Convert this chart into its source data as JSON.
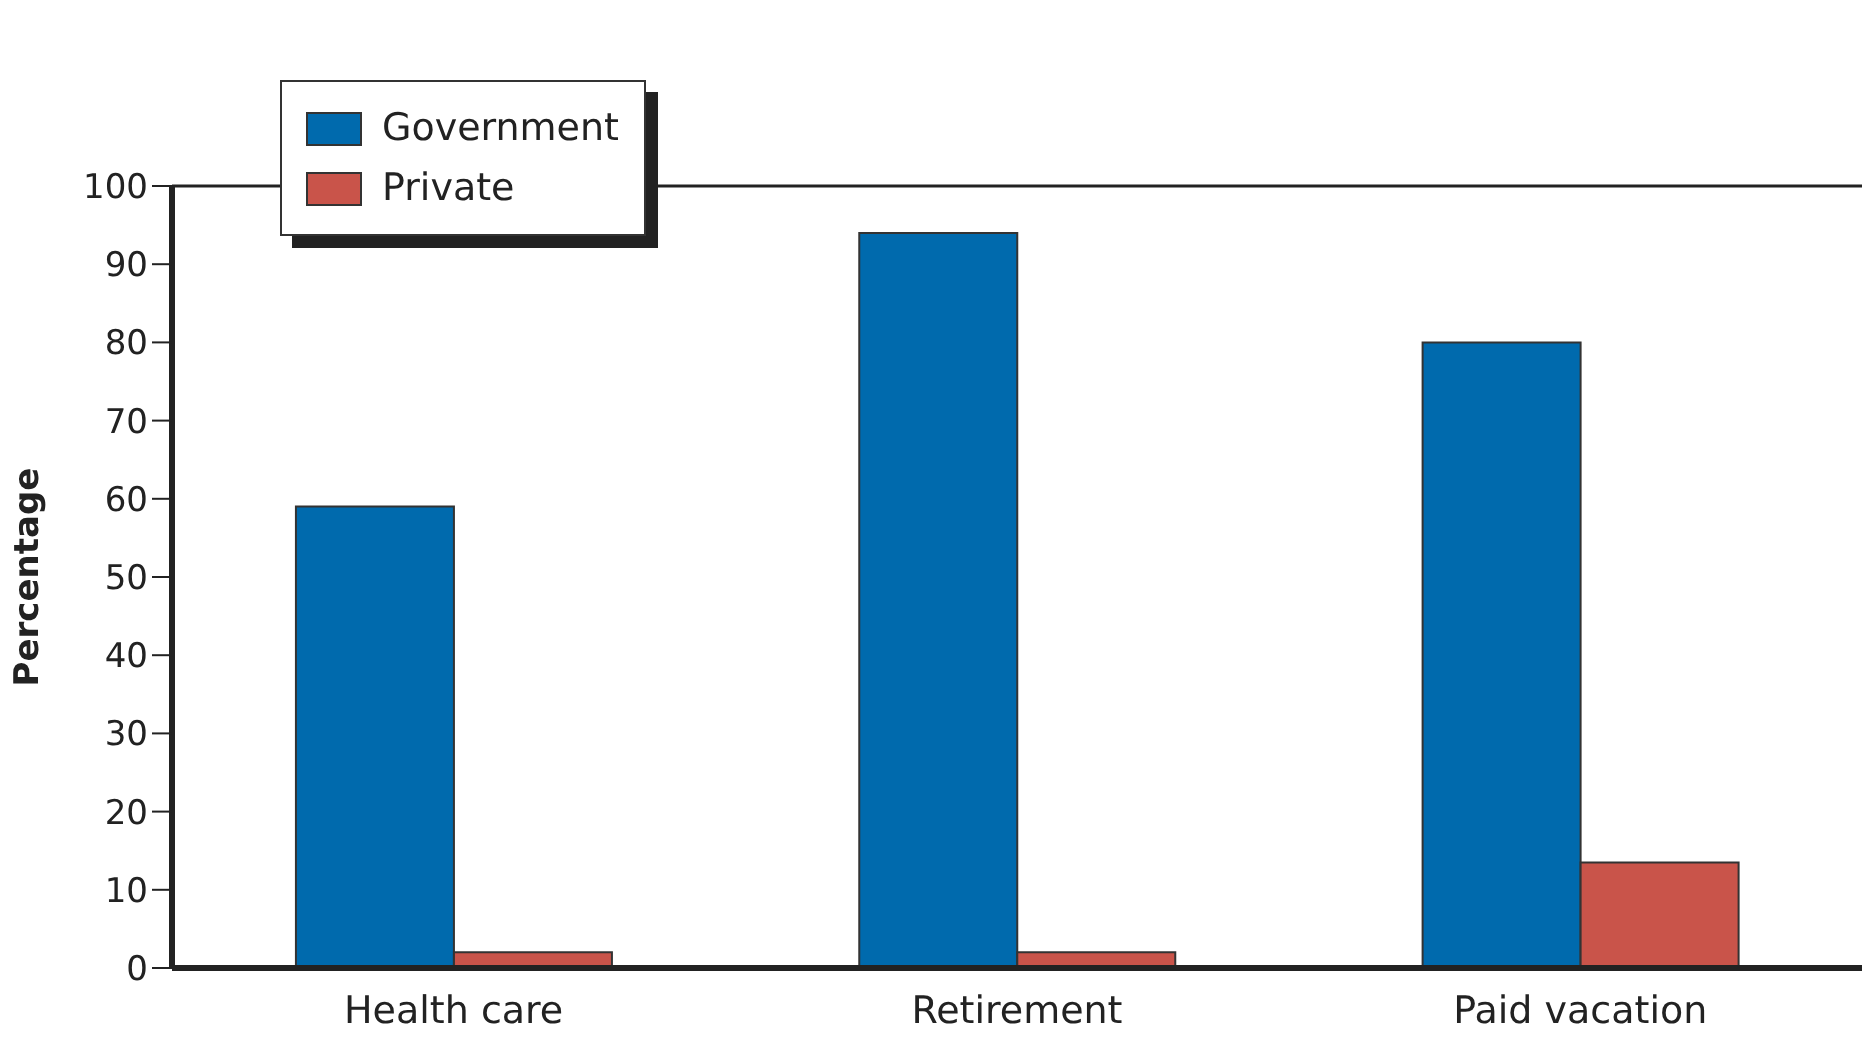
{
  "chart_data": {
    "type": "bar",
    "ylabel": "Percentage",
    "categories": [
      "Health care",
      "Retirement",
      "Paid vacation"
    ],
    "series": [
      {
        "name": "Government",
        "color": "#006aad",
        "values": [
          59,
          94,
          80
        ]
      },
      {
        "name": "Private",
        "color": "#c9544a",
        "values": [
          2,
          2,
          13.5
        ]
      }
    ],
    "ylim": [
      0,
      100
    ],
    "yticks": [
      0,
      10,
      20,
      30,
      40,
      50,
      60,
      70,
      80,
      90,
      100
    ],
    "grid": false,
    "legend": "top left"
  }
}
